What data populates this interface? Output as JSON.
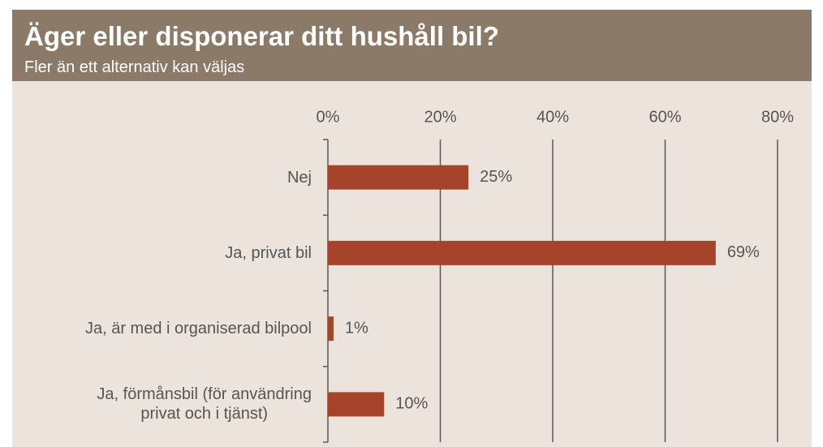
{
  "chart_data": {
    "type": "bar",
    "orientation": "horizontal",
    "title": "Äger eller disponerar ditt hushåll bil?",
    "subtitle": "Fler än ett alternativ kan väljas",
    "categories": [
      "Nej",
      "Ja, privat bil",
      "Ja, är med i organiserad bilpool",
      "Ja, förmånsbil (för användring\nprivat och i tjänst)"
    ],
    "values": [
      25,
      69,
      1,
      10
    ],
    "value_labels": [
      "25%",
      "69%",
      "1%",
      "10%"
    ],
    "color": "#a5442a",
    "xlim": [
      0,
      80
    ],
    "xticks": [
      {
        "value": 0,
        "label": "0%"
      },
      {
        "value": 20,
        "label": "20%"
      },
      {
        "value": 40,
        "label": "40%"
      },
      {
        "value": 60,
        "label": "60%"
      },
      {
        "value": 80,
        "label": "80%"
      }
    ],
    "grid": true
  }
}
